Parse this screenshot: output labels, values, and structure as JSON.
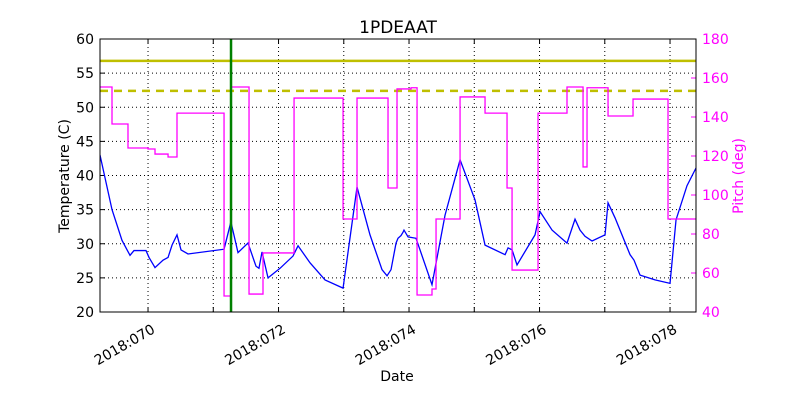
{
  "chart_data": {
    "type": "line",
    "title": "1PDEAAT",
    "xlabel": "Date",
    "ylabel": "Temperature (C)",
    "y2label": "Pitch (deg)",
    "xlim": [
      69.264,
      78.398
    ],
    "ylim": [
      20,
      60
    ],
    "y2lim": [
      40,
      180
    ],
    "grid": true,
    "x_grid_days": [
      70,
      71,
      72,
      73,
      74,
      75,
      76,
      77,
      78
    ],
    "x_ticks": [
      {
        "day": 70,
        "label": "2018:070"
      },
      {
        "day": 72,
        "label": "2018:072"
      },
      {
        "day": 74,
        "label": "2018:074"
      },
      {
        "day": 76,
        "label": "2018:076"
      },
      {
        "day": 78,
        "label": "2018:078"
      }
    ],
    "y_ticks": [
      20,
      25,
      30,
      35,
      40,
      45,
      50,
      55,
      60
    ],
    "y2_ticks": [
      40,
      60,
      80,
      100,
      120,
      140,
      160,
      180
    ],
    "colors": {
      "temperature": "#0000ff",
      "pitch": "#ff00ff",
      "limit": "#bfbf00",
      "now": "#008000",
      "y2axis": "#ff00ff"
    },
    "limits": [
      {
        "value": 56.8,
        "style": "solid"
      },
      {
        "value": 52.4,
        "style": "dashed"
      }
    ],
    "now_marker_day": 71.272,
    "series": [
      {
        "axis": "left",
        "points": [
          [
            69.264,
            43.0
          ],
          [
            69.448,
            35.0
          ],
          [
            69.601,
            30.5
          ],
          [
            69.724,
            28.3
          ],
          [
            69.785,
            29.0
          ],
          [
            69.969,
            29.0
          ],
          [
            70.015,
            28.0
          ],
          [
            70.107,
            26.5
          ],
          [
            70.23,
            27.6
          ],
          [
            70.307,
            28.0
          ],
          [
            70.368,
            29.8
          ],
          [
            70.444,
            31.3
          ],
          [
            70.506,
            29.1
          ],
          [
            70.613,
            28.5
          ],
          [
            71.165,
            29.2
          ],
          [
            71.257,
            32.7
          ],
          [
            71.27,
            33.2
          ],
          [
            71.379,
            28.7
          ],
          [
            71.532,
            30.1
          ],
          [
            71.655,
            26.7
          ],
          [
            71.7,
            26.4
          ],
          [
            71.747,
            28.8
          ],
          [
            71.839,
            25.0
          ],
          [
            72.023,
            26.4
          ],
          [
            72.222,
            28.2
          ],
          [
            72.299,
            29.7
          ],
          [
            72.483,
            27.2
          ],
          [
            72.713,
            24.7
          ],
          [
            72.989,
            23.5
          ],
          [
            73.203,
            38.3
          ],
          [
            73.402,
            31.3
          ],
          [
            73.586,
            26.2
          ],
          [
            73.663,
            25.3
          ],
          [
            73.724,
            26.2
          ],
          [
            73.801,
            30.1
          ],
          [
            73.831,
            30.8
          ],
          [
            73.877,
            31.2
          ],
          [
            73.908,
            31.7
          ],
          [
            73.923,
            32.0
          ],
          [
            73.985,
            31.0
          ],
          [
            74.107,
            30.8
          ],
          [
            74.352,
            24.0
          ],
          [
            74.552,
            34.2
          ],
          [
            74.782,
            42.3
          ],
          [
            75.012,
            36.4
          ],
          [
            75.165,
            29.8
          ],
          [
            75.472,
            28.4
          ],
          [
            75.518,
            29.4
          ],
          [
            75.579,
            29.1
          ],
          [
            75.655,
            26.9
          ],
          [
            75.931,
            31.3
          ],
          [
            76.008,
            34.7
          ],
          [
            76.192,
            32.0
          ],
          [
            76.421,
            30.1
          ],
          [
            76.544,
            33.6
          ],
          [
            76.621,
            32.0
          ],
          [
            76.697,
            31.1
          ],
          [
            76.805,
            30.4
          ],
          [
            77.004,
            31.3
          ],
          [
            77.05,
            36.0
          ],
          [
            77.157,
            33.8
          ],
          [
            77.387,
            28.4
          ],
          [
            77.448,
            27.6
          ],
          [
            77.54,
            25.4
          ],
          [
            77.77,
            24.7
          ],
          [
            78.0,
            24.2
          ],
          [
            78.092,
            33.5
          ],
          [
            78.26,
            38.5
          ],
          [
            78.398,
            41.1
          ]
        ]
      },
      {
        "axis": "right",
        "step": true,
        "points": [
          [
            69.264,
            155.4
          ],
          [
            69.448,
            136.4
          ],
          [
            69.693,
            124.1
          ],
          [
            70.0,
            123.6
          ],
          [
            70.107,
            121.0
          ],
          [
            70.307,
            119.5
          ],
          [
            70.444,
            142.0
          ],
          [
            71.165,
            48.2
          ],
          [
            71.272,
            155.4
          ],
          [
            71.548,
            49.2
          ],
          [
            71.762,
            70.3
          ],
          [
            72.238,
            149.7
          ],
          [
            72.989,
            87.7
          ],
          [
            73.203,
            149.7
          ],
          [
            73.678,
            103.6
          ],
          [
            73.816,
            154.4
          ],
          [
            74.031,
            155.0
          ],
          [
            74.123,
            48.7
          ],
          [
            74.352,
            51.8
          ],
          [
            74.414,
            87.7
          ],
          [
            74.782,
            150.3
          ],
          [
            75.165,
            142.0
          ],
          [
            75.502,
            103.6
          ],
          [
            75.579,
            61.5
          ],
          [
            75.977,
            142.0
          ],
          [
            76.421,
            155.4
          ],
          [
            76.667,
            114.4
          ],
          [
            76.728,
            155.0
          ],
          [
            77.05,
            140.5
          ],
          [
            77.433,
            149.2
          ],
          [
            77.969,
            87.7
          ],
          [
            78.398,
            87.7
          ]
        ]
      }
    ]
  }
}
